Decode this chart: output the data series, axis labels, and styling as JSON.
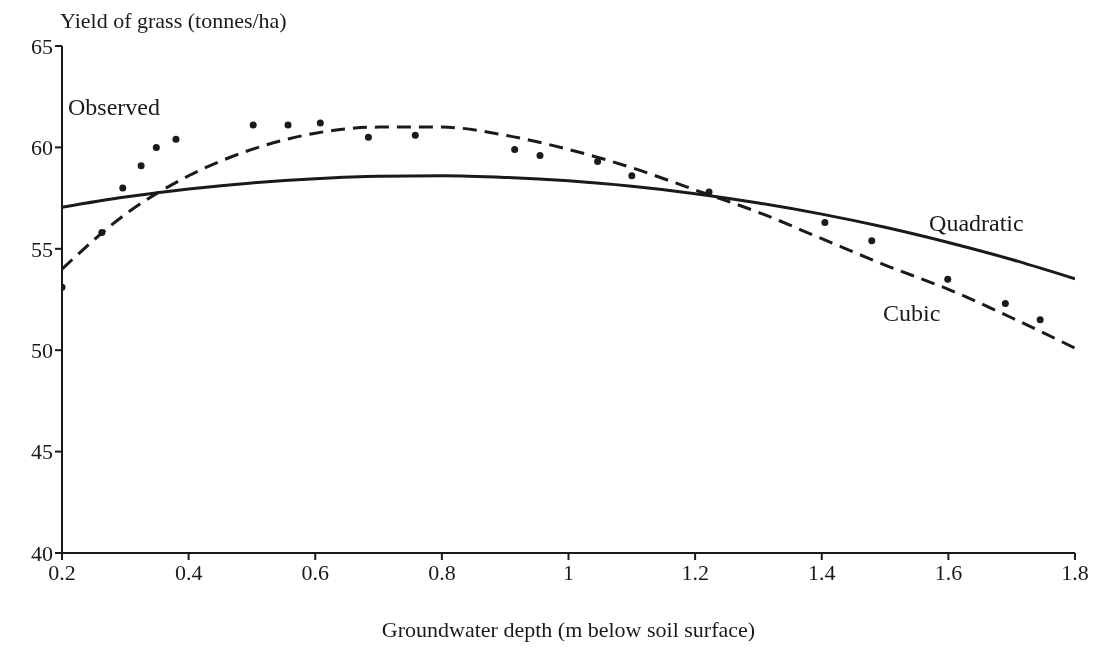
{
  "chart_data": {
    "type": "line",
    "xlabel": "Groundwater depth (m below soil surface)",
    "ylabel": "Yield of grass (tonnes/ha)",
    "xlim": [
      0.2,
      1.8
    ],
    "xticks": [
      {
        "value": 0.2,
        "label": "0.2"
      },
      {
        "value": 0.4,
        "label": "0.4"
      },
      {
        "value": 0.6,
        "label": "0.6"
      },
      {
        "value": 0.8,
        "label": "0.8"
      },
      1,
      {
        "value": 1.2,
        "label": "1.2"
      },
      {
        "value": 1.4,
        "label": "1.4"
      },
      {
        "value": 1.6,
        "label": "1.6"
      },
      {
        "value": 1.8,
        "label": "1.8"
      }
    ],
    "ylim": [
      40,
      65
    ],
    "yticks": [
      40,
      45,
      50,
      55,
      60,
      65
    ],
    "series": [
      {
        "name": "Observed",
        "type": "scatter",
        "marker": "circle",
        "color": "#1a1a1a",
        "x": [
          0.2,
          0.263,
          0.296,
          0.325,
          0.349,
          0.38,
          0.502,
          0.557,
          0.608,
          0.684,
          0.758,
          0.915,
          0.955,
          1.046,
          1.1,
          1.222,
          1.405,
          1.479,
          1.599,
          1.69,
          1.745
        ],
        "values": [
          53.1,
          55.8,
          58.0,
          59.1,
          60.0,
          60.4,
          61.1,
          61.1,
          61.2,
          60.5,
          60.6,
          59.9,
          59.6,
          59.3,
          58.6,
          57.8,
          56.3,
          55.4,
          53.5,
          52.3,
          51.5
        ]
      },
      {
        "name": "Quadratic",
        "line_style": "solid",
        "marker": "none",
        "color": "#1a1a1a",
        "x": [
          0.2,
          0.3,
          0.4,
          0.5,
          0.6,
          0.7,
          0.8,
          0.9,
          1.0,
          1.1,
          1.2,
          1.3,
          1.4,
          1.5,
          1.6,
          1.7,
          1.8
        ],
        "values": [
          57.05,
          57.55,
          57.95,
          58.25,
          58.46,
          58.58,
          58.6,
          58.52,
          58.35,
          58.08,
          57.72,
          57.26,
          56.71,
          56.06,
          55.31,
          54.47,
          53.52
        ]
      },
      {
        "name": "Cubic",
        "line_style": "dashed",
        "marker": "none",
        "color": "#1a1a1a",
        "x": [
          0.2,
          0.3,
          0.4,
          0.5,
          0.6,
          0.7,
          0.8,
          0.9,
          1.0,
          1.1,
          1.2,
          1.3,
          1.4,
          1.5,
          1.6,
          1.7,
          1.8
        ],
        "values": [
          54.0,
          56.7,
          58.6,
          59.9,
          60.7,
          61.0,
          61.0,
          60.6,
          59.9,
          59.0,
          57.9,
          56.8,
          55.5,
          54.2,
          53.0,
          51.6,
          50.1
        ]
      }
    ]
  }
}
